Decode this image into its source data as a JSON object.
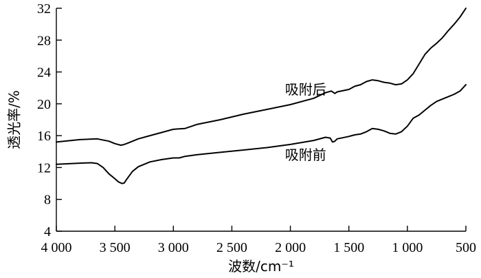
{
  "chart_data": {
    "type": "line",
    "xlabel": "波数/cm⁻¹",
    "ylabel": "透光率/%",
    "xlim": [
      4000,
      500
    ],
    "ylim": [
      4,
      32
    ],
    "x_reversed": true,
    "x_ticks": [
      4000,
      3500,
      3000,
      2500,
      2000,
      1500,
      1000,
      500
    ],
    "x_tick_labels": [
      "4 000",
      "3 500",
      "3 000",
      "2 500",
      "2 000",
      "1 500",
      "1 000",
      "500"
    ],
    "y_ticks": [
      4,
      8,
      12,
      16,
      20,
      24,
      28,
      32
    ],
    "y_tick_labels": [
      "4",
      "8",
      "12",
      "16",
      "20",
      "24",
      "28",
      "32"
    ],
    "grid": false,
    "series": [
      {
        "name": "吸附后",
        "x": [
          4000,
          3800,
          3650,
          3550,
          3500,
          3450,
          3430,
          3400,
          3300,
          3200,
          3100,
          3000,
          2950,
          2900,
          2800,
          2600,
          2400,
          2200,
          2000,
          1800,
          1700,
          1650,
          1620,
          1600,
          1500,
          1450,
          1400,
          1350,
          1300,
          1250,
          1200,
          1150,
          1100,
          1050,
          1000,
          950,
          900,
          850,
          800,
          750,
          700,
          650,
          600,
          550,
          500
        ],
        "values": [
          15.2,
          15.5,
          15.6,
          15.3,
          15.0,
          14.8,
          14.85,
          15.0,
          15.6,
          16.0,
          16.4,
          16.8,
          16.85,
          16.9,
          17.4,
          18.0,
          18.7,
          19.3,
          19.9,
          20.7,
          21.4,
          21.6,
          21.3,
          21.5,
          21.8,
          22.2,
          22.4,
          22.8,
          23.0,
          22.9,
          22.7,
          22.6,
          22.4,
          22.5,
          23.0,
          23.8,
          25.0,
          26.2,
          27.0,
          27.6,
          28.3,
          29.2,
          30.0,
          30.9,
          32.0
        ]
      },
      {
        "name": "吸附前",
        "x": [
          4000,
          3800,
          3700,
          3650,
          3600,
          3550,
          3500,
          3470,
          3440,
          3420,
          3400,
          3350,
          3300,
          3200,
          3100,
          3000,
          2950,
          2900,
          2800,
          2600,
          2400,
          2200,
          2000,
          1800,
          1700,
          1660,
          1640,
          1620,
          1600,
          1500,
          1450,
          1400,
          1350,
          1300,
          1250,
          1200,
          1150,
          1100,
          1050,
          1000,
          950,
          900,
          850,
          800,
          750,
          700,
          650,
          600,
          550,
          500
        ],
        "values": [
          12.4,
          12.55,
          12.6,
          12.5,
          12.0,
          11.2,
          10.6,
          10.2,
          10.0,
          10.05,
          10.5,
          11.5,
          12.1,
          12.7,
          13.0,
          13.2,
          13.2,
          13.4,
          13.6,
          13.9,
          14.2,
          14.5,
          14.9,
          15.4,
          15.8,
          15.7,
          15.2,
          15.3,
          15.6,
          15.9,
          16.1,
          16.2,
          16.5,
          16.9,
          16.8,
          16.6,
          16.3,
          16.2,
          16.5,
          17.2,
          18.2,
          18.6,
          19.2,
          19.8,
          20.3,
          20.6,
          20.9,
          21.2,
          21.6,
          22.4
        ]
      }
    ],
    "annotations": [
      {
        "text": "吸附后",
        "x": 1870,
        "y": 21.2
      },
      {
        "text": "吸附前",
        "x": 1870,
        "y": 13.0
      }
    ]
  }
}
